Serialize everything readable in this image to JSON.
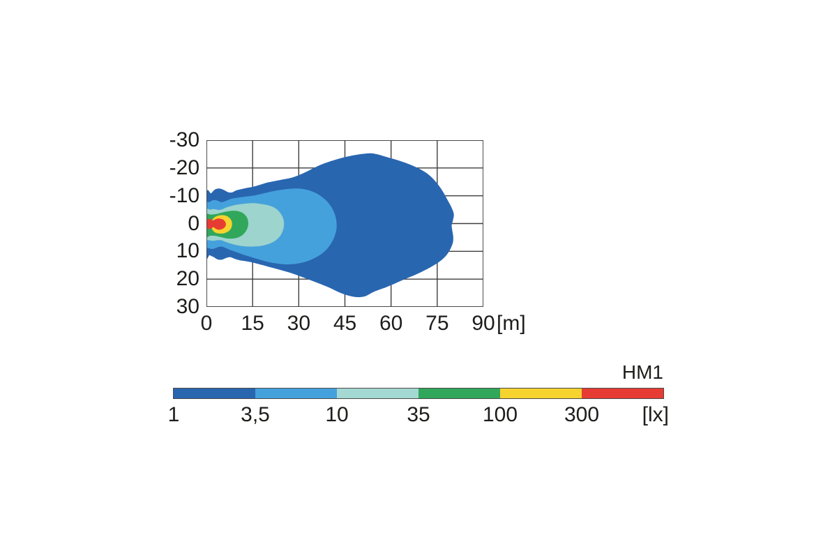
{
  "page": {
    "background": "#ffffff",
    "text_color": "#1d1d1b",
    "grid_color": "#3d3d3d"
  },
  "chart_data": {
    "type": "isolux-contour",
    "title": "",
    "series_label": "HM1",
    "xlabel": "",
    "ylabel": "",
    "x_unit": "[m]",
    "value_unit": "[lx]",
    "x_range": [
      0,
      90
    ],
    "y_range": [
      -30,
      30
    ],
    "grid": true,
    "x_ticks": [
      "0",
      "15",
      "30",
      "45",
      "60",
      "75",
      "90"
    ],
    "y_ticks": [
      "-30",
      "-20",
      "-10",
      "0",
      "10",
      "20",
      "30"
    ],
    "x_gridlines": [
      0,
      15,
      30,
      45,
      60,
      75,
      90
    ],
    "y_gridlines": [
      -30,
      -20,
      -10,
      0,
      10,
      20,
      30
    ],
    "levels_lx": [
      1,
      3.5,
      10,
      35,
      100,
      300
    ],
    "contours": [
      {
        "level_lx": 1,
        "label": "1",
        "color": "#2966b0",
        "points": [
          [
            0,
            -10.4
          ],
          [
            1.5,
            -10.9
          ],
          [
            2.7,
            -12.2
          ],
          [
            4.2,
            -12.6
          ],
          [
            5.6,
            -12.1
          ],
          [
            7,
            -11.3
          ],
          [
            8.3,
            -11.2
          ],
          [
            9.6,
            -11.9
          ],
          [
            11,
            -12.3
          ],
          [
            13,
            -12.8
          ],
          [
            15,
            -13.2
          ],
          [
            17.5,
            -14
          ],
          [
            20,
            -14.8
          ],
          [
            24,
            -15.7
          ],
          [
            28,
            -16.6
          ],
          [
            32,
            -18.4
          ],
          [
            36,
            -20.6
          ],
          [
            40,
            -22.3
          ],
          [
            45,
            -23.9
          ],
          [
            49,
            -24.8
          ],
          [
            53,
            -25.3
          ],
          [
            55.2,
            -25
          ],
          [
            57.5,
            -24.3
          ],
          [
            60,
            -23.5
          ],
          [
            63,
            -22.5
          ],
          [
            66,
            -21.3
          ],
          [
            69,
            -19.8
          ],
          [
            71.5,
            -18.2
          ],
          [
            73.5,
            -16.3
          ],
          [
            75.3,
            -14
          ],
          [
            76.9,
            -11.4
          ],
          [
            78.3,
            -8.6
          ],
          [
            79.6,
            -5.9
          ],
          [
            80.4,
            -3.4
          ],
          [
            80.1,
            -1.1
          ],
          [
            79.7,
            0.7
          ],
          [
            79.9,
            2.5
          ],
          [
            80.2,
            4.7
          ],
          [
            80.1,
            6.8
          ],
          [
            79.3,
            9.1
          ],
          [
            78,
            11.4
          ],
          [
            76.1,
            13.4
          ],
          [
            73.8,
            15.1
          ],
          [
            71,
            16.8
          ],
          [
            68,
            18.4
          ],
          [
            64.5,
            20
          ],
          [
            61,
            21.7
          ],
          [
            57.5,
            23.3
          ],
          [
            55,
            24.3
          ],
          [
            53.3,
            25.2
          ],
          [
            51.5,
            26.2
          ],
          [
            49,
            26.5
          ],
          [
            46,
            25.9
          ],
          [
            43,
            24.7
          ],
          [
            40,
            23.1
          ],
          [
            36,
            21.3
          ],
          [
            32,
            19.6
          ],
          [
            28,
            18
          ],
          [
            24,
            16.7
          ],
          [
            20,
            15.5
          ],
          [
            17,
            14.6
          ],
          [
            14.5,
            13.9
          ],
          [
            12.5,
            13.5
          ],
          [
            10.8,
            13.2
          ],
          [
            9.2,
            12.7
          ],
          [
            7.8,
            12.1
          ],
          [
            6.4,
            12.4
          ],
          [
            5,
            13
          ],
          [
            3.6,
            12.9
          ],
          [
            2.2,
            12
          ],
          [
            1,
            11.4
          ],
          [
            0,
            10.9
          ]
        ]
      },
      {
        "level_lx": 3.5,
        "label": "3,5",
        "color": "#45a1dc",
        "points": [
          [
            0,
            -6.4
          ],
          [
            1,
            -7.7
          ],
          [
            2.2,
            -8.4
          ],
          [
            3.5,
            -8.3
          ],
          [
            4.8,
            -7.7
          ],
          [
            6.2,
            -8.1
          ],
          [
            8,
            -8.9
          ],
          [
            10,
            -9.3
          ],
          [
            12,
            -9.6
          ],
          [
            15,
            -10
          ],
          [
            18,
            -10.7
          ],
          [
            21,
            -11.5
          ],
          [
            24,
            -12.1
          ],
          [
            27,
            -12.5
          ],
          [
            29.5,
            -12.6
          ],
          [
            31.5,
            -12.4
          ],
          [
            33.5,
            -11.9
          ],
          [
            35.5,
            -11
          ],
          [
            37.3,
            -9.8
          ],
          [
            39,
            -8.2
          ],
          [
            40.5,
            -6.1
          ],
          [
            41.6,
            -3.7
          ],
          [
            42.2,
            -1.1
          ],
          [
            42.3,
            1.5
          ],
          [
            41.8,
            4.1
          ],
          [
            40.8,
            6.6
          ],
          [
            39.3,
            9
          ],
          [
            37.3,
            11
          ],
          [
            34.8,
            12.6
          ],
          [
            32,
            13.8
          ],
          [
            29,
            14.5
          ],
          [
            26,
            14.7
          ],
          [
            23,
            14.4
          ],
          [
            20,
            13.8
          ],
          [
            17,
            12.9
          ],
          [
            14,
            11.9
          ],
          [
            11.5,
            11
          ],
          [
            9.5,
            10.2
          ],
          [
            7.5,
            9.4
          ],
          [
            6,
            8.7
          ],
          [
            4.8,
            8.3
          ],
          [
            3.5,
            8.6
          ],
          [
            2.2,
            9.1
          ],
          [
            1,
            8.9
          ],
          [
            0,
            7.3
          ]
        ]
      },
      {
        "level_lx": 10,
        "label": "10",
        "color": "#9dd4cd",
        "points": [
          [
            0,
            -4.4
          ],
          [
            1.2,
            -5
          ],
          [
            2.5,
            -5.2
          ],
          [
            3.8,
            -4.9
          ],
          [
            5,
            -5.1
          ],
          [
            6.5,
            -5.8
          ],
          [
            8,
            -6.3
          ],
          [
            10,
            -6.8
          ],
          [
            12,
            -7.1
          ],
          [
            14,
            -7.3
          ],
          [
            16,
            -7.3
          ],
          [
            18,
            -7
          ],
          [
            20,
            -6.6
          ],
          [
            21.8,
            -5.9
          ],
          [
            23.2,
            -4.8
          ],
          [
            24.3,
            -3.3
          ],
          [
            25,
            -1.6
          ],
          [
            25.2,
            0.3
          ],
          [
            24.9,
            2.3
          ],
          [
            24.1,
            4.2
          ],
          [
            22.8,
            5.8
          ],
          [
            21,
            7
          ],
          [
            18.8,
            7.8
          ],
          [
            16.5,
            8.2
          ],
          [
            14,
            8.3
          ],
          [
            11.5,
            8.1
          ],
          [
            9.5,
            7.7
          ],
          [
            7.5,
            7.1
          ],
          [
            6,
            6.5
          ],
          [
            4.8,
            6
          ],
          [
            3.5,
            6
          ],
          [
            2.2,
            6.2
          ],
          [
            1,
            6
          ],
          [
            0,
            5
          ]
        ]
      },
      {
        "level_lx": 35,
        "label": "35",
        "color": "#31a75b",
        "points": [
          [
            0,
            -2.9
          ],
          [
            1.5,
            -3.2
          ],
          [
            3,
            -3.4
          ],
          [
            4.5,
            -3.8
          ],
          [
            6,
            -4.2
          ],
          [
            7.5,
            -4.5
          ],
          [
            9,
            -4.6
          ],
          [
            10.5,
            -4.4
          ],
          [
            11.8,
            -3.8
          ],
          [
            12.8,
            -2.8
          ],
          [
            13.4,
            -1.5
          ],
          [
            13.6,
            0.1
          ],
          [
            13.3,
            1.7
          ],
          [
            12.6,
            3.1
          ],
          [
            11.5,
            4.3
          ],
          [
            10,
            5.1
          ],
          [
            8.5,
            5.4
          ],
          [
            7,
            5.4
          ],
          [
            5.5,
            5.1
          ],
          [
            4,
            4.7
          ],
          [
            2.5,
            4.4
          ],
          [
            1.2,
            4.4
          ],
          [
            0,
            4.3
          ]
        ]
      },
      {
        "level_lx": 100,
        "label": "100",
        "color": "#f6d32e",
        "points": [
          [
            1.7,
            -0.3
          ],
          [
            2,
            -1.5
          ],
          [
            2.8,
            -2.4
          ],
          [
            4,
            -2.9
          ],
          [
            5.3,
            -3
          ],
          [
            6.6,
            -2.7
          ],
          [
            7.6,
            -1.9
          ],
          [
            8.2,
            -0.8
          ],
          [
            8.3,
            0.6
          ],
          [
            7.9,
            1.9
          ],
          [
            7,
            2.9
          ],
          [
            5.7,
            3.5
          ],
          [
            4.3,
            3.6
          ],
          [
            3,
            3.3
          ],
          [
            2.1,
            2.5
          ],
          [
            1.6,
            1.4
          ],
          [
            1.5,
            0.5
          ]
        ]
      },
      {
        "level_lx": 300,
        "label": "300",
        "color": "#e73c33",
        "points": [
          [
            0,
            -1.2
          ],
          [
            0.7,
            -1.6
          ],
          [
            1.4,
            -1.6
          ],
          [
            2,
            -1.1
          ],
          [
            2.8,
            -1.5
          ],
          [
            3.7,
            -1.8
          ],
          [
            4.7,
            -1.7
          ],
          [
            5.6,
            -1.3
          ],
          [
            6.2,
            -0.4
          ],
          [
            6.3,
            0.6
          ],
          [
            5.8,
            1.5
          ],
          [
            4.8,
            2.1
          ],
          [
            3.8,
            2.2
          ],
          [
            2.9,
            1.8
          ],
          [
            2.2,
            1.3
          ],
          [
            1.6,
            1.8
          ],
          [
            0.9,
            2
          ],
          [
            0.3,
            1.7
          ],
          [
            0,
            1
          ]
        ]
      }
    ]
  },
  "legend": {
    "title": "HM1",
    "unit_label": "[lx]",
    "entries": [
      {
        "label": "1",
        "color": "#2966b0"
      },
      {
        "label": "3,5",
        "color": "#45a1dc"
      },
      {
        "label": "10",
        "color": "#a4d8d2"
      },
      {
        "label": "35",
        "color": "#31a75b"
      },
      {
        "label": "100",
        "color": "#f6d32e"
      },
      {
        "label": "300",
        "color": "#e73c33"
      }
    ]
  }
}
